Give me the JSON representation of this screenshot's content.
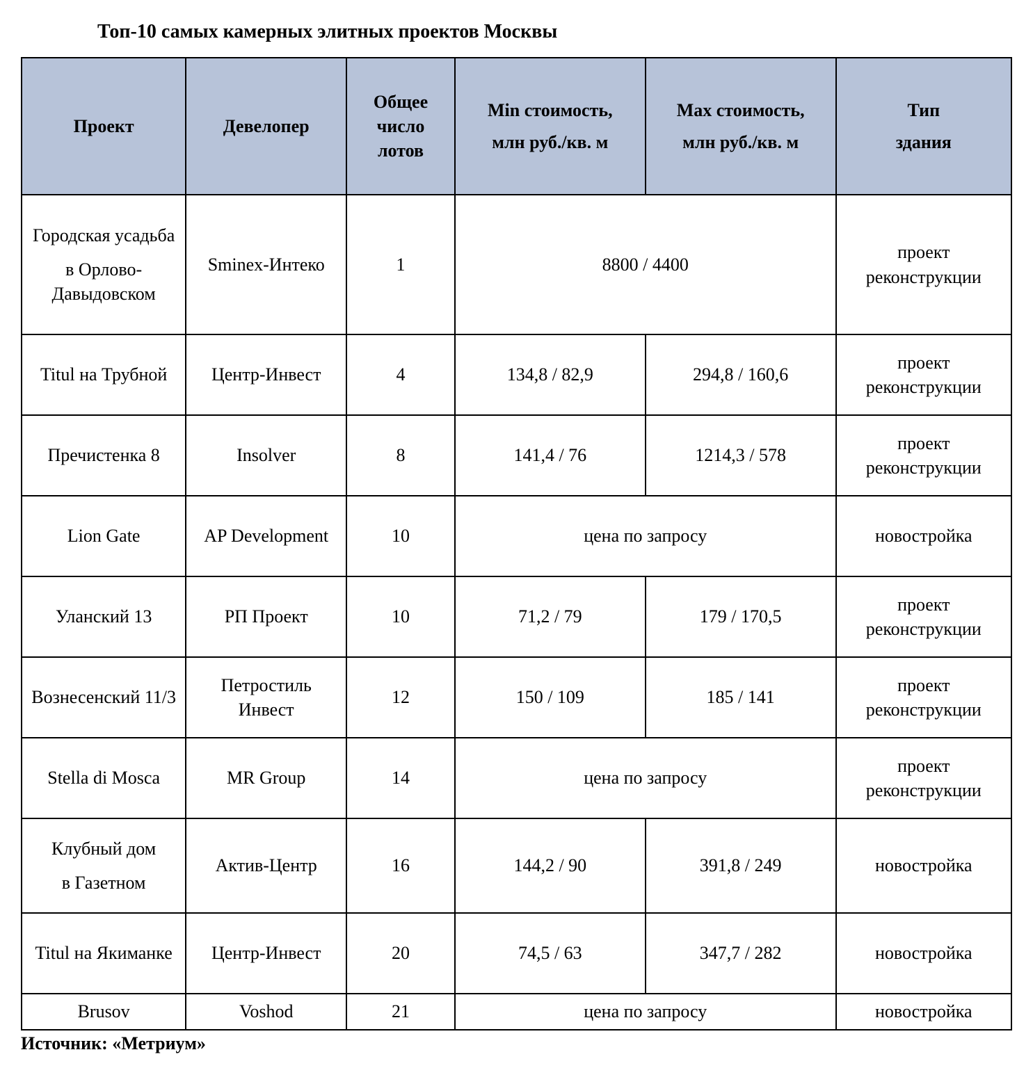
{
  "title": "Топ-10 самых камерных элитных проектов Москвы",
  "source": "Источник: «Метриум»",
  "colors": {
    "header_bg": "#b7c3d9",
    "border": "#000000",
    "background": "#ffffff",
    "text": "#000000"
  },
  "table": {
    "type": "table",
    "columns": [
      {
        "label_line1": "Проект"
      },
      {
        "label_line1": "Девелопер"
      },
      {
        "label_line1": "Общее число лотов"
      },
      {
        "label_line1": "Min стоимость,",
        "label_line2": "млн руб./кв. м"
      },
      {
        "label_line1": "Max стоимость,",
        "label_line2": "млн руб./кв. м"
      },
      {
        "label_line1": "Тип",
        "label_line2": "здания"
      }
    ],
    "rows": [
      {
        "project_line1": "Городская усадьба",
        "project_line2": "в Орлово-Давыдовском",
        "developer": "Sminex-Интеко",
        "lots": "1",
        "price_merged": true,
        "price_text": "8800 / 4400",
        "building_type": "проект реконструкции"
      },
      {
        "project_line1": "Titul на Трубной",
        "developer": "Центр-Инвест",
        "lots": "4",
        "min_price": "134,8 / 82,9",
        "max_price": "294,8 / 160,6",
        "building_type": "проект реконструкции"
      },
      {
        "project_line1": "Пречистенка 8",
        "developer": "Insolver",
        "lots": "8",
        "min_price": "141,4 / 76",
        "max_price": "1214,3 / 578",
        "building_type": "проект реконструкции"
      },
      {
        "project_line1": "Lion Gate",
        "developer": "AP Development",
        "lots": "10",
        "price_merged": true,
        "price_text": "цена по запросу",
        "building_type": "новостройка"
      },
      {
        "project_line1": "Уланский 13",
        "developer": "РП Проект",
        "lots": "10",
        "min_price": "71,2 / 79",
        "max_price": "179 / 170,5",
        "building_type": "проект реконструкции"
      },
      {
        "project_line1": "Вознесенский 11/3",
        "developer": "Петростиль Инвест",
        "lots": "12",
        "min_price": "150 / 109",
        "max_price": "185 / 141",
        "building_type": "проект реконструкции"
      },
      {
        "project_line1": "Stella di Mosca",
        "developer": "MR Group",
        "lots": "14",
        "price_merged": true,
        "price_text": "цена по запросу",
        "building_type": "проект реконструкции"
      },
      {
        "project_line1": "Клубный дом",
        "project_line2": "в Газетном",
        "developer": "Актив-Центр",
        "lots": "16",
        "min_price": "144,2 / 90",
        "max_price": "391,8 / 249",
        "building_type": "новостройка"
      },
      {
        "project_line1": "Titul на Якиманке",
        "developer": "Центр-Инвест",
        "lots": "20",
        "min_price": "74,5 / 63",
        "max_price": "347,7 / 282",
        "building_type": "новостройка"
      },
      {
        "project_line1": "Brusov",
        "developer": "Voshod",
        "lots": "21",
        "price_merged": true,
        "price_text": "цена по запросу",
        "building_type": "новостройка"
      }
    ]
  }
}
